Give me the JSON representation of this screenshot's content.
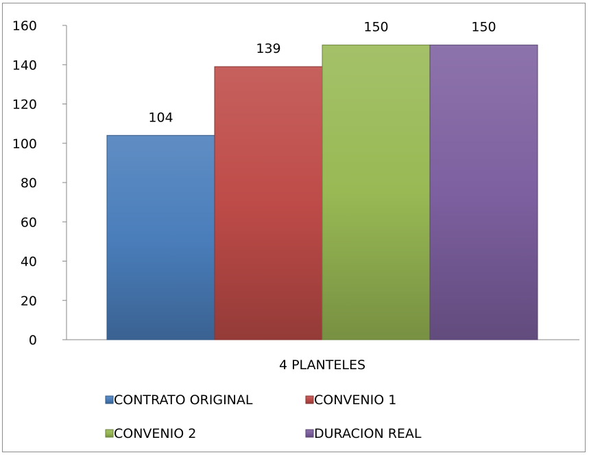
{
  "chart_data": {
    "type": "bar",
    "categories": [
      "4 PLANTELES"
    ],
    "series": [
      {
        "name": "CONTRATO ORIGINAL",
        "values": [
          104
        ],
        "color": "#4a7ebb"
      },
      {
        "name": "CONVENIO 1",
        "values": [
          139
        ],
        "color": "#be4b48"
      },
      {
        "name": "CONVENIO 2",
        "values": [
          150
        ],
        "color": "#98b954"
      },
      {
        "name": "DURACION REAL",
        "values": [
          150
        ],
        "color": "#7d60a0"
      }
    ],
    "yticks": [
      "0",
      "20",
      "40",
      "60",
      "80",
      "100",
      "120",
      "140",
      "160"
    ],
    "data_labels": [
      "104",
      "139",
      "150",
      "150"
    ],
    "ylim": [
      0,
      160
    ],
    "grid": false,
    "legend_position": "bottom"
  }
}
